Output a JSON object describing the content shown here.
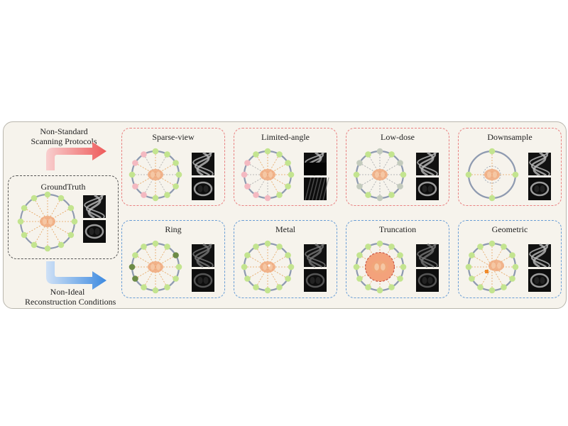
{
  "top_arrow_label": [
    "Non-Standard",
    "Scanning Protocols"
  ],
  "bottom_arrow_label": [
    "Non-Ideal",
    "Reconstruction Conditions"
  ],
  "ground_truth": {
    "title": "GroundTruth"
  },
  "protocols": [
    {
      "id": "sparse-view",
      "title": "Sparse-view"
    },
    {
      "id": "limited-angle",
      "title": "Limited-angle"
    },
    {
      "id": "low-dose",
      "title": "Low-dose"
    },
    {
      "id": "downsample",
      "title": "Downsample"
    }
  ],
  "conditions": [
    {
      "id": "ring",
      "title": "Ring"
    },
    {
      "id": "metal",
      "title": "Metal"
    },
    {
      "id": "truncation",
      "title": "Truncation"
    },
    {
      "id": "geometric",
      "title": "Geometric"
    }
  ],
  "colors": {
    "protocol_border": "#e98181",
    "condition_border": "#6a9ed6",
    "detector_green": "#c3e48f",
    "detector_pink": "#f4b9c1",
    "detector_gray": "#c3cbbd",
    "detector_dark": "#6c8b47",
    "organ": "#f0a77a",
    "panel_bg": "#f6f3ec"
  }
}
